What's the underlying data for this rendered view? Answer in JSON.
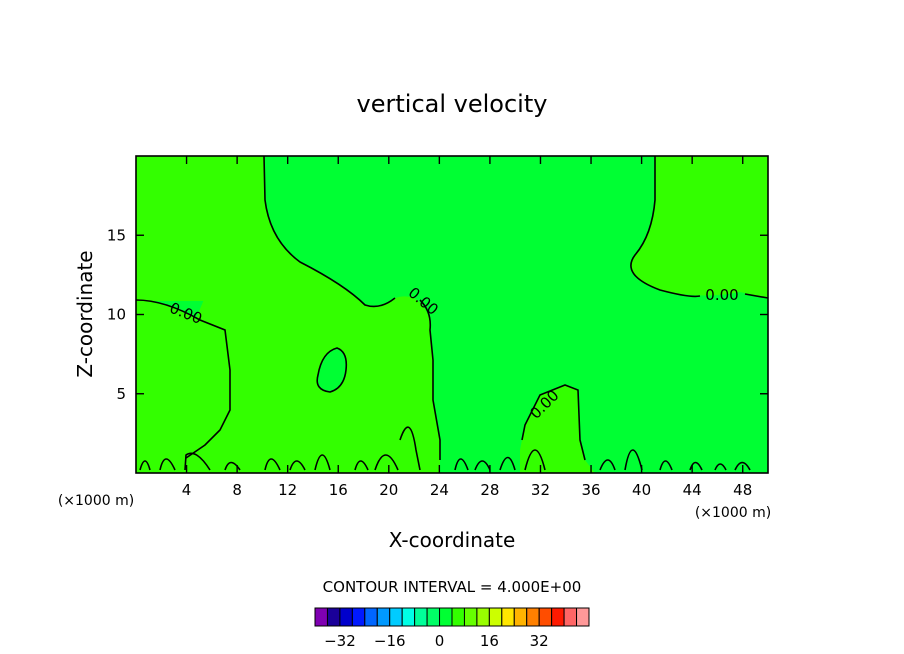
{
  "chart_data": {
    "type": "heatmap",
    "title": "vertical velocity",
    "xlabel": "X-coordinate",
    "ylabel": "Z-coordinate",
    "x_unit": "(×1000 m)",
    "xlim": [
      0,
      50
    ],
    "ylim": [
      0,
      20
    ],
    "x_ticks": [
      4,
      8,
      12,
      16,
      20,
      24,
      28,
      32,
      36,
      40,
      44,
      48
    ],
    "y_ticks": [
      5,
      10,
      15
    ],
    "contour_label": "0.00",
    "contour_interval_text": "CONTOUR INTERVAL = 4.000E+00",
    "regions": [
      {
        "value": 0,
        "color": "#00ff33"
      },
      {
        "value": 0,
        "color": "#33ff00"
      }
    ],
    "colorbar": {
      "colors": [
        "#7f00b2",
        "#1a0099",
        "#0000cc",
        "#0019ff",
        "#0066ff",
        "#0099ff",
        "#00ccff",
        "#00ffe6",
        "#00ff99",
        "#00ff66",
        "#00ff33",
        "#33ff00",
        "#66ff00",
        "#99ff00",
        "#ccff00",
        "#ffe600",
        "#ffb300",
        "#ff8000",
        "#ff4d00",
        "#ff1a00",
        "#ff6666",
        "#ff9999"
      ],
      "tick_labels": [
        "-32",
        "-16",
        "0",
        "16",
        "32"
      ],
      "tick_values": [
        -32,
        -16,
        0,
        16,
        32
      ],
      "range": [
        -40,
        48
      ]
    }
  }
}
